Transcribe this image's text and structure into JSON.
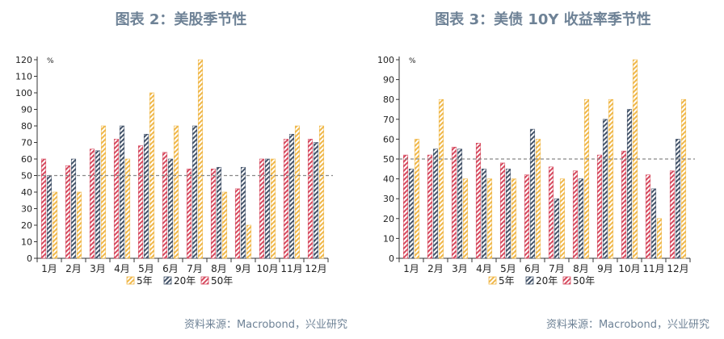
{
  "colors": {
    "series_5y": "#f0b84a",
    "series_20y": "#44546a",
    "series_50y": "#d64a5f",
    "title": "#6e8296",
    "reference_line": "#888888",
    "axis": "#333333"
  },
  "charts": [
    {
      "title": "图表 2：美股季节性",
      "source": "资料来源：Macrobond，兴业研究"
    },
    {
      "title": "图表 3：美债 10Y 收益率季节性",
      "source": "资料来源：Macrobond，兴业研究"
    }
  ],
  "chart_data": [
    {
      "type": "bar",
      "unit_label": "%",
      "categories": [
        "1月",
        "2月",
        "3月",
        "4月",
        "5月",
        "6月",
        "7月",
        "8月",
        "9月",
        "10月",
        "11月",
        "12月"
      ],
      "series": [
        {
          "name": "5年",
          "values": [
            40,
            40,
            80,
            60,
            100,
            80,
            120,
            40,
            20,
            60,
            80,
            80
          ]
        },
        {
          "name": "20年",
          "values": [
            50,
            60,
            65,
            80,
            75,
            60,
            80,
            55,
            55,
            60,
            75,
            70
          ]
        },
        {
          "name": "50年",
          "values": [
            60,
            56,
            66,
            72,
            68,
            64,
            54,
            54,
            42,
            60,
            72,
            72
          ]
        }
      ],
      "legend_order": [
        "5年",
        "20年",
        "50年"
      ],
      "ylim": [
        0,
        120
      ],
      "yticks": [
        0,
        10,
        20,
        30,
        40,
        50,
        60,
        70,
        80,
        90,
        100,
        110,
        120
      ],
      "reference_line": 50,
      "legend_position": "bottom"
    },
    {
      "type": "bar",
      "unit_label": "%",
      "categories": [
        "1月",
        "2月",
        "3月",
        "4月",
        "5月",
        "6月",
        "7月",
        "8月",
        "9月",
        "10月",
        "11月",
        "12月"
      ],
      "series": [
        {
          "name": "5年",
          "values": [
            60,
            80,
            40,
            40,
            40,
            60,
            40,
            80,
            80,
            100,
            20,
            80
          ]
        },
        {
          "name": "20年",
          "values": [
            45,
            55,
            55,
            45,
            45,
            65,
            30,
            40,
            70,
            75,
            35,
            60
          ]
        },
        {
          "name": "50年",
          "values": [
            52,
            52,
            56,
            58,
            48,
            42,
            46,
            44,
            52,
            54,
            42,
            44
          ]
        }
      ],
      "legend_order": [
        "5年",
        "20年",
        "50年"
      ],
      "ylim": [
        0,
        100
      ],
      "yticks": [
        0,
        10,
        20,
        30,
        40,
        50,
        60,
        70,
        80,
        90,
        100
      ],
      "reference_line": 50,
      "legend_position": "bottom"
    }
  ]
}
